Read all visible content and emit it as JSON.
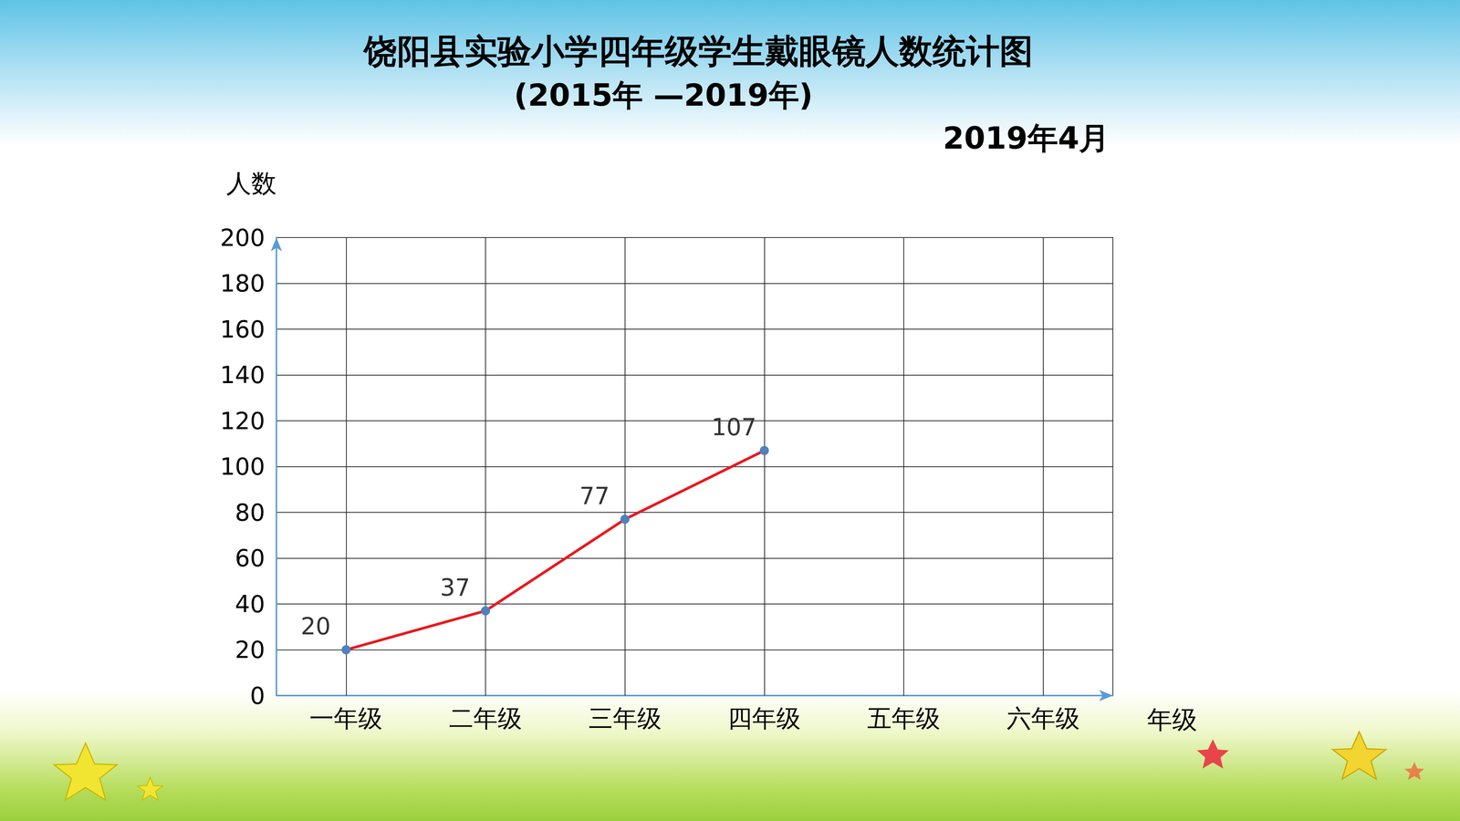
{
  "chart_data": {
    "type": "line",
    "title": "饶阳县实验小学四年级学生戴眼镜人数统计图",
    "subtitle": "(2015年 —2019年)",
    "date": "2019年4月",
    "x_label": "年级",
    "y_label": "人数",
    "categories": [
      "一年级",
      "二年级",
      "三年级",
      "四年级",
      "五年级",
      "六年级"
    ],
    "values": [
      20,
      37,
      77,
      107,
      null,
      null
    ],
    "color": "#e8191f",
    "marker": "circle",
    "ylim": [
      0,
      200
    ],
    "yticks": [
      0,
      20,
      40,
      60,
      80,
      100,
      120,
      140,
      160,
      180,
      200
    ],
    "grid": true,
    "data_labels": true
  }
}
